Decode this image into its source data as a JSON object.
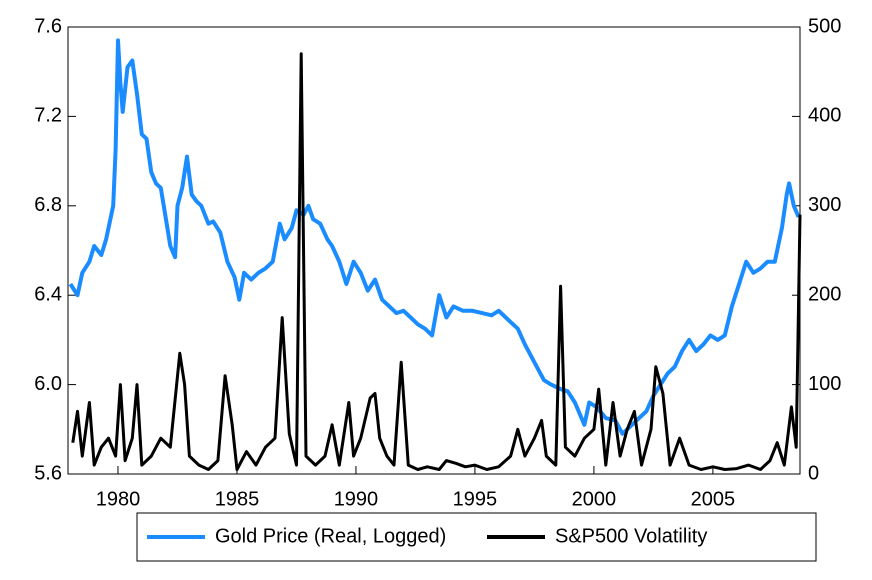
{
  "chart_data": {
    "type": "line",
    "xlim": [
      1977.9,
      2008.66
    ],
    "xticks": [
      1980,
      1985,
      1990,
      1995,
      2000,
      2005
    ],
    "ylim": [
      5.6,
      7.6
    ],
    "yticks": [
      5.6,
      {
        "value": 6.0,
        "label": "6.0"
      },
      6.4,
      6.8,
      7.2,
      7.6
    ],
    "y2lim": [
      0,
      500
    ],
    "y2ticks": [
      0,
      100,
      200,
      300,
      400,
      500
    ],
    "legend": "bottom",
    "series": [
      {
        "name": "Gold Price (Real, Logged)",
        "color": "#1a8cff",
        "x": [
          1978.0,
          1978.3,
          1978.5,
          1978.8,
          1979.0,
          1979.3,
          1979.5,
          1979.8,
          1979.9,
          1980.0,
          1980.1,
          1980.2,
          1980.4,
          1980.6,
          1980.8,
          1981.0,
          1981.2,
          1981.4,
          1981.6,
          1981.8,
          1982.0,
          1982.2,
          1982.4,
          1982.5,
          1982.7,
          1982.9,
          1983.1,
          1983.3,
          1983.5,
          1983.8,
          1984.0,
          1984.3,
          1984.6,
          1984.9,
          1985.1,
          1985.3,
          1985.6,
          1985.9,
          1986.2,
          1986.5,
          1986.8,
          1987.0,
          1987.3,
          1987.5,
          1987.8,
          1988.0,
          1988.2,
          1988.5,
          1988.8,
          1989.0,
          1989.3,
          1989.6,
          1989.9,
          1990.2,
          1990.5,
          1990.8,
          1991.1,
          1991.4,
          1991.7,
          1992.0,
          1992.3,
          1992.6,
          1992.9,
          1993.2,
          1993.5,
          1993.8,
          1994.1,
          1994.5,
          1994.9,
          1995.3,
          1995.7,
          1996.0,
          1996.4,
          1996.8,
          1997.1,
          1997.5,
          1997.9,
          1998.2,
          1998.6,
          1998.9,
          1999.2,
          1999.6,
          1999.8,
          2000.1,
          2000.5,
          2000.9,
          2001.2,
          2001.6,
          2001.9,
          2002.2,
          2002.5,
          2002.8,
          2003.1,
          2003.4,
          2003.7,
          2004.0,
          2004.3,
          2004.6,
          2004.9,
          2005.2,
          2005.5,
          2005.8,
          2006.1,
          2006.4,
          2006.7,
          2007.0,
          2007.3,
          2007.6,
          2007.9,
          2008.1,
          2008.2,
          2008.4,
          2008.6
        ],
        "values": [
          6.45,
          6.4,
          6.5,
          6.55,
          6.62,
          6.58,
          6.65,
          6.8,
          7.05,
          7.54,
          7.35,
          7.22,
          7.42,
          7.45,
          7.3,
          7.12,
          7.1,
          6.95,
          6.9,
          6.88,
          6.75,
          6.62,
          6.57,
          6.8,
          6.88,
          7.02,
          6.85,
          6.82,
          6.8,
          6.72,
          6.73,
          6.68,
          6.55,
          6.48,
          6.38,
          6.5,
          6.47,
          6.5,
          6.52,
          6.55,
          6.72,
          6.65,
          6.7,
          6.78,
          6.76,
          6.8,
          6.74,
          6.72,
          6.65,
          6.62,
          6.55,
          6.45,
          6.55,
          6.5,
          6.42,
          6.47,
          6.38,
          6.35,
          6.32,
          6.33,
          6.3,
          6.27,
          6.25,
          6.22,
          6.4,
          6.3,
          6.35,
          6.33,
          6.33,
          6.32,
          6.31,
          6.33,
          6.29,
          6.25,
          6.18,
          6.1,
          6.02,
          6.0,
          5.98,
          5.97,
          5.92,
          5.82,
          5.92,
          5.9,
          5.85,
          5.84,
          5.78,
          5.82,
          5.85,
          5.88,
          5.95,
          6.0,
          6.05,
          6.08,
          6.15,
          6.2,
          6.15,
          6.18,
          6.22,
          6.2,
          6.22,
          6.35,
          6.45,
          6.55,
          6.5,
          6.52,
          6.55,
          6.55,
          6.7,
          6.85,
          6.9,
          6.8,
          6.75
        ]
      },
      {
        "name": "S&P500 Volatility",
        "color": "#000000",
        "axis": "y2",
        "x": [
          1978.1,
          1978.3,
          1978.5,
          1978.8,
          1979.0,
          1979.3,
          1979.6,
          1979.9,
          1980.1,
          1980.3,
          1980.6,
          1980.8,
          1981.0,
          1981.4,
          1981.8,
          1982.2,
          1982.6,
          1982.8,
          1983.0,
          1983.4,
          1983.8,
          1984.2,
          1984.5,
          1984.8,
          1985.0,
          1985.4,
          1985.8,
          1986.2,
          1986.6,
          1986.9,
          1987.2,
          1987.5,
          1987.7,
          1987.9,
          1988.3,
          1988.7,
          1989.0,
          1989.3,
          1989.7,
          1989.9,
          1990.2,
          1990.6,
          1990.8,
          1991.0,
          1991.3,
          1991.6,
          1991.9,
          1992.2,
          1992.6,
          1993.0,
          1993.5,
          1993.8,
          1994.2,
          1994.6,
          1995.0,
          1995.5,
          1996.0,
          1996.5,
          1996.8,
          1997.1,
          1997.5,
          1997.8,
          1998.0,
          1998.4,
          1998.6,
          1998.8,
          1999.2,
          1999.6,
          2000.0,
          2000.2,
          2000.5,
          2000.8,
          2001.1,
          2001.4,
          2001.7,
          2002.0,
          2002.4,
          2002.6,
          2002.9,
          2003.2,
          2003.6,
          2004.0,
          2004.5,
          2005.0,
          2005.5,
          2006.0,
          2006.5,
          2007.0,
          2007.4,
          2007.7,
          2008.0,
          2008.3,
          2008.5,
          2008.66
        ],
        "values": [
          35,
          70,
          20,
          80,
          10,
          30,
          40,
          20,
          100,
          15,
          40,
          100,
          10,
          20,
          40,
          30,
          135,
          100,
          20,
          10,
          5,
          15,
          110,
          55,
          5,
          25,
          10,
          30,
          40,
          175,
          45,
          10,
          470,
          20,
          10,
          20,
          55,
          10,
          80,
          20,
          40,
          85,
          90,
          40,
          20,
          10,
          125,
          10,
          5,
          8,
          5,
          15,
          12,
          8,
          10,
          5,
          8,
          20,
          50,
          20,
          40,
          60,
          20,
          10,
          210,
          30,
          20,
          40,
          50,
          95,
          10,
          80,
          20,
          50,
          70,
          10,
          50,
          120,
          90,
          10,
          40,
          10,
          5,
          8,
          5,
          6,
          10,
          5,
          15,
          35,
          10,
          75,
          30,
          290
        ]
      }
    ]
  }
}
